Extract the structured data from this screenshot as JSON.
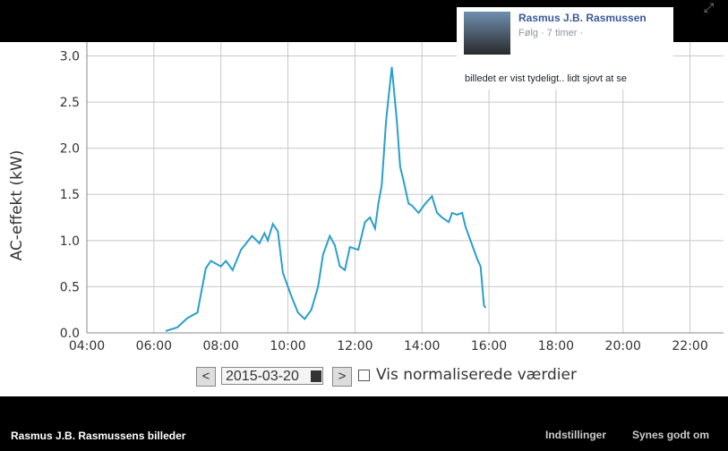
{
  "photo_owner": "Rasmus J.B. Rasmussens billeder",
  "actions": [
    "Indstillinger",
    "Synes godt om"
  ],
  "comment": {
    "author": "Rasmus J.B. Rasmussen",
    "meta": "Følg · 7 timer ·",
    "text": "billedet er vist tydeligt.. lidt sjovt at se"
  },
  "controls": {
    "prev": "<",
    "date": "2015-03-20",
    "next": ">",
    "checkbox_label": "Vis normaliserede værdier"
  },
  "chart_data": {
    "type": "line",
    "y_label": "AC-effekt (kW)",
    "color": "#2a9fcc",
    "grid": true,
    "xlim": [
      4,
      23
    ],
    "ylim": [
      0,
      3.15
    ],
    "xticks": [
      {
        "value": 4,
        "label": "04:00"
      },
      {
        "value": 6,
        "label": "06:00"
      },
      {
        "value": 8,
        "label": "08:00"
      },
      {
        "value": 10,
        "label": "10:00"
      },
      {
        "value": 12,
        "label": "12:00"
      },
      {
        "value": 14,
        "label": "14:00"
      },
      {
        "value": 16,
        "label": "16:00"
      },
      {
        "value": 18,
        "label": "18:00"
      },
      {
        "value": 20,
        "label": "20:00"
      },
      {
        "value": 22,
        "label": "22:00"
      }
    ],
    "yticks": [
      {
        "value": 0,
        "label": "0.0"
      },
      0.5,
      {
        "value": 1,
        "label": "1.0"
      },
      1.5,
      {
        "value": 2,
        "label": "2.0"
      },
      2.5,
      {
        "value": 3,
        "label": "3.0"
      }
    ],
    "x": [
      6.35,
      6.7,
      7.0,
      7.3,
      7.55,
      7.7,
      8.0,
      8.15,
      8.35,
      8.6,
      8.93,
      9.15,
      9.3,
      9.4,
      9.55,
      9.7,
      9.85,
      10.1,
      10.3,
      10.5,
      10.7,
      10.9,
      11.05,
      11.25,
      11.4,
      11.55,
      11.7,
      11.85,
      12.1,
      12.3,
      12.45,
      12.6,
      12.7,
      12.8,
      12.93,
      13.1,
      13.25,
      13.35,
      13.45,
      13.6,
      13.7,
      13.9,
      14.1,
      14.3,
      14.45,
      14.6,
      14.8,
      14.9,
      15.05,
      15.2,
      15.3,
      15.5,
      15.65,
      15.75,
      15.85,
      15.9
    ],
    "values": [
      0.02,
      0.06,
      0.16,
      0.22,
      0.7,
      0.78,
      0.72,
      0.78,
      0.68,
      0.9,
      1.05,
      0.97,
      1.08,
      1.0,
      1.18,
      1.1,
      0.65,
      0.4,
      0.22,
      0.15,
      0.25,
      0.5,
      0.85,
      1.05,
      0.95,
      0.72,
      0.68,
      0.93,
      0.9,
      1.2,
      1.25,
      1.13,
      1.4,
      1.6,
      2.3,
      2.88,
      2.3,
      1.8,
      1.65,
      1.4,
      1.38,
      1.3,
      1.4,
      1.48,
      1.3,
      1.25,
      1.2,
      1.3,
      1.28,
      1.3,
      1.15,
      0.95,
      0.8,
      0.72,
      0.3,
      0.27
    ]
  }
}
